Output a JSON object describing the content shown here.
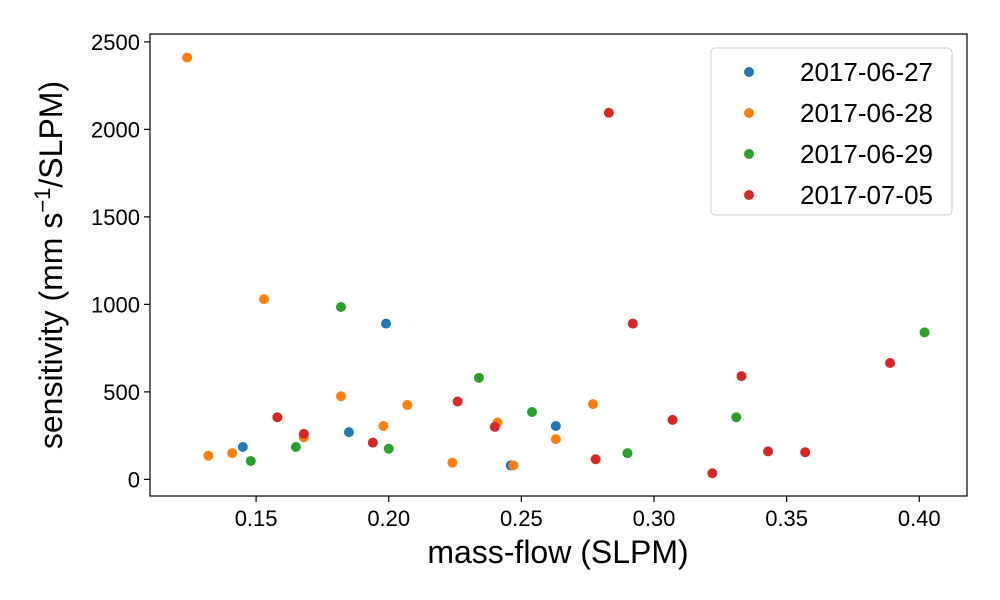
{
  "chart_data": {
    "type": "scatter",
    "xlabel": "mass-flow (SLPM)",
    "ylabel_main": "sensitivity (mm s",
    "ylabel_sup": "−1",
    "ylabel_tail": "/SLPM)",
    "xlim": [
      0.11,
      0.418
    ],
    "ylim": [
      -95,
      2545
    ],
    "xticks": [
      0.15,
      0.2,
      0.25,
      0.3,
      0.35,
      0.4
    ],
    "xtick_labels": [
      "0.15",
      "0.20",
      "0.25",
      "0.30",
      "0.35",
      "0.40"
    ],
    "yticks": [
      0,
      500,
      1000,
      1500,
      2000,
      2500
    ],
    "ytick_labels": [
      "0",
      "500",
      "1000",
      "1500",
      "2000",
      "2500"
    ],
    "grid": false,
    "legend_position": "top-right",
    "series": [
      {
        "name": "2017-06-27",
        "color": "#1f77b4",
        "points": [
          [
            0.145,
            185
          ],
          [
            0.185,
            270
          ],
          [
            0.199,
            890
          ],
          [
            0.246,
            80
          ],
          [
            0.263,
            305
          ]
        ]
      },
      {
        "name": "2017-06-28",
        "color": "#ff7f0e",
        "points": [
          [
            0.124,
            2410
          ],
          [
            0.132,
            135
          ],
          [
            0.141,
            150
          ],
          [
            0.153,
            1030
          ],
          [
            0.168,
            240
          ],
          [
            0.182,
            475
          ],
          [
            0.198,
            305
          ],
          [
            0.207,
            425
          ],
          [
            0.224,
            95
          ],
          [
            0.241,
            325
          ],
          [
            0.247,
            80
          ],
          [
            0.263,
            230
          ],
          [
            0.277,
            430
          ]
        ]
      },
      {
        "name": "2017-06-29",
        "color": "#2ca02c",
        "points": [
          [
            0.148,
            105
          ],
          [
            0.165,
            185
          ],
          [
            0.182,
            985
          ],
          [
            0.2,
            175
          ],
          [
            0.234,
            580
          ],
          [
            0.254,
            385
          ],
          [
            0.29,
            150
          ],
          [
            0.331,
            355
          ],
          [
            0.402,
            840
          ]
        ]
      },
      {
        "name": "2017-07-05",
        "color": "#d62728",
        "points": [
          [
            0.158,
            355
          ],
          [
            0.168,
            260
          ],
          [
            0.194,
            210
          ],
          [
            0.226,
            445
          ],
          [
            0.24,
            300
          ],
          [
            0.278,
            115
          ],
          [
            0.283,
            2095
          ],
          [
            0.292,
            890
          ],
          [
            0.307,
            340
          ],
          [
            0.322,
            35
          ],
          [
            0.333,
            590
          ],
          [
            0.343,
            160
          ],
          [
            0.357,
            155
          ],
          [
            0.389,
            665
          ]
        ]
      }
    ]
  }
}
